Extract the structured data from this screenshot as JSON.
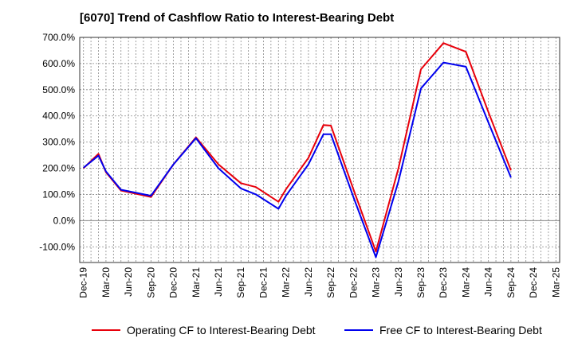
{
  "chart_data": {
    "type": "line",
    "title": "[6070]  Trend of Cashflow Ratio to Interest-Bearing Debt",
    "xlabel": "",
    "ylabel": "",
    "ylim": [
      -160,
      700
    ],
    "y_ticks": [
      {
        "value": 700,
        "label": "700.0%"
      },
      {
        "value": 600,
        "label": "600.0%"
      },
      {
        "value": 500,
        "label": "500.0%"
      },
      {
        "value": 400,
        "label": "400.0%"
      },
      {
        "value": 300,
        "label": "300.0%"
      },
      {
        "value": 200,
        "label": "200.0%"
      },
      {
        "value": 100,
        "label": "100.0%"
      },
      {
        "value": 0,
        "label": "0.0%"
      },
      {
        "value": -100,
        "label": "-100.0%"
      }
    ],
    "x_tick_labels": [
      "Dec-19",
      "Mar-20",
      "Jun-20",
      "Sep-20",
      "Dec-20",
      "Mar-21",
      "Jun-21",
      "Sep-21",
      "Dec-21",
      "Mar-22",
      "Jun-22",
      "Sep-22",
      "Dec-22",
      "Mar-23",
      "Jun-23",
      "Sep-23",
      "Dec-23",
      "Mar-24",
      "Jun-24",
      "Sep-24",
      "Dec-24",
      "Mar-25"
    ],
    "x": [
      "Dec-19",
      "Jan-20",
      "Feb-20",
      "Mar-20",
      "Apr-20",
      "May-20",
      "Jun-20",
      "Jul-20",
      "Aug-20",
      "Sep-20",
      "Oct-20",
      "Nov-20",
      "Dec-20",
      "Jan-21",
      "Feb-21",
      "Mar-21",
      "Apr-21",
      "May-21",
      "Jun-21",
      "Jul-21",
      "Aug-21",
      "Sep-21",
      "Oct-21",
      "Nov-21",
      "Dec-21",
      "Jan-22",
      "Feb-22",
      "Mar-22",
      "Apr-22",
      "May-22",
      "Jun-22",
      "Jul-22",
      "Aug-22",
      "Sep-22",
      "Oct-22",
      "Nov-22",
      "Dec-22",
      "Jan-23",
      "Feb-23",
      "Mar-23",
      "Apr-23",
      "May-23",
      "Jun-23",
      "Jul-23",
      "Aug-23",
      "Sep-23",
      "Oct-23",
      "Nov-23",
      "Dec-23",
      "Jan-24",
      "Feb-24",
      "Mar-24",
      "Apr-24",
      "May-24",
      "Jun-24",
      "Jul-24",
      "Aug-24",
      "Sep-24",
      "Oct-24",
      "Nov-24",
      "Dec-24",
      "Jan-25",
      "Feb-25",
      "Mar-25"
    ],
    "series": [
      {
        "name": "Operating CF to Interest-Bearing Debt",
        "color": "#e8000b",
        "points": [
          {
            "x": "Dec-19",
            "y": 200
          },
          {
            "x": "Feb-20",
            "y": 255
          },
          {
            "x": "Mar-20",
            "y": 185
          },
          {
            "x": "May-20",
            "y": 115
          },
          {
            "x": "Sep-20",
            "y": 90
          },
          {
            "x": "Dec-20",
            "y": 215
          },
          {
            "x": "Mar-21",
            "y": 318
          },
          {
            "x": "Jun-21",
            "y": 215
          },
          {
            "x": "Sep-21",
            "y": 143
          },
          {
            "x": "Nov-21",
            "y": 128
          },
          {
            "x": "Feb-22",
            "y": 72
          },
          {
            "x": "Mar-22",
            "y": 120
          },
          {
            "x": "Jun-22",
            "y": 240
          },
          {
            "x": "Aug-22",
            "y": 365
          },
          {
            "x": "Sep-22",
            "y": 363
          },
          {
            "x": "Dec-22",
            "y": 120
          },
          {
            "x": "Mar-23",
            "y": -118
          },
          {
            "x": "Jun-23",
            "y": 200
          },
          {
            "x": "Sep-23",
            "y": 578
          },
          {
            "x": "Dec-23",
            "y": 678
          },
          {
            "x": "Mar-24",
            "y": 645
          },
          {
            "x": "Jun-24",
            "y": 415
          },
          {
            "x": "Sep-24",
            "y": 192
          }
        ]
      },
      {
        "name": "Free CF to Interest-Bearing Debt",
        "color": "#0000ee",
        "points": [
          {
            "x": "Dec-19",
            "y": 202
          },
          {
            "x": "Feb-20",
            "y": 248
          },
          {
            "x": "Mar-20",
            "y": 188
          },
          {
            "x": "May-20",
            "y": 118
          },
          {
            "x": "Sep-20",
            "y": 95
          },
          {
            "x": "Dec-20",
            "y": 215
          },
          {
            "x": "Mar-21",
            "y": 315
          },
          {
            "x": "Jun-21",
            "y": 200
          },
          {
            "x": "Sep-21",
            "y": 123
          },
          {
            "x": "Nov-21",
            "y": 100
          },
          {
            "x": "Feb-22",
            "y": 45
          },
          {
            "x": "Mar-22",
            "y": 95
          },
          {
            "x": "Jun-22",
            "y": 215
          },
          {
            "x": "Aug-22",
            "y": 330
          },
          {
            "x": "Sep-22",
            "y": 330
          },
          {
            "x": "Dec-22",
            "y": 90
          },
          {
            "x": "Mar-23",
            "y": -140
          },
          {
            "x": "Jun-23",
            "y": 150
          },
          {
            "x": "Sep-23",
            "y": 505
          },
          {
            "x": "Dec-23",
            "y": 604
          },
          {
            "x": "Mar-24",
            "y": 588
          },
          {
            "x": "Jun-24",
            "y": 375
          },
          {
            "x": "Sep-24",
            "y": 165
          }
        ]
      }
    ],
    "grid": true,
    "legend_position": "bottom"
  }
}
